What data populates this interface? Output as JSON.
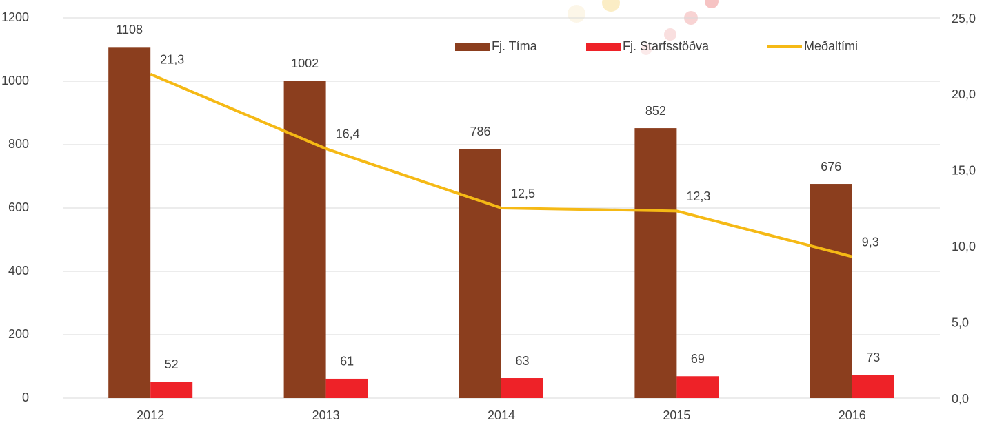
{
  "chart_data": {
    "type": "bar-line",
    "categories": [
      "2012",
      "2013",
      "2014",
      "2015",
      "2016"
    ],
    "series": [
      {
        "name": "Fj. Tíma",
        "color": "#8b3e1e",
        "values": [
          1108,
          1002,
          786,
          852,
          676
        ]
      },
      {
        "name": "Fj. Starfsstöðva",
        "color": "#ee2228",
        "values": [
          52,
          61,
          63,
          69,
          73
        ]
      },
      {
        "name": "Meðaltími",
        "color": "#f5b915",
        "axis": "y2",
        "type": "line",
        "values": [
          21.3,
          16.4,
          12.5,
          12.3,
          9.3
        ],
        "value_labels": [
          "21,3",
          "16,4",
          "12,5",
          "12,3",
          "9,3"
        ]
      }
    ],
    "ylim": [
      0,
      1200
    ],
    "yticks": [
      0,
      200,
      400,
      600,
      800,
      1000,
      1200
    ],
    "y2lim": [
      0,
      25
    ],
    "y2ticks": [
      {
        "value": 0,
        "label": "0,0"
      },
      {
        "value": 5,
        "label": "5,0"
      },
      {
        "value": 10,
        "label": "10,0"
      },
      {
        "value": 15,
        "label": "15,0"
      },
      {
        "value": 20,
        "label": "20,0"
      },
      {
        "value": 25,
        "label": "25,0"
      }
    ],
    "grid": true
  }
}
